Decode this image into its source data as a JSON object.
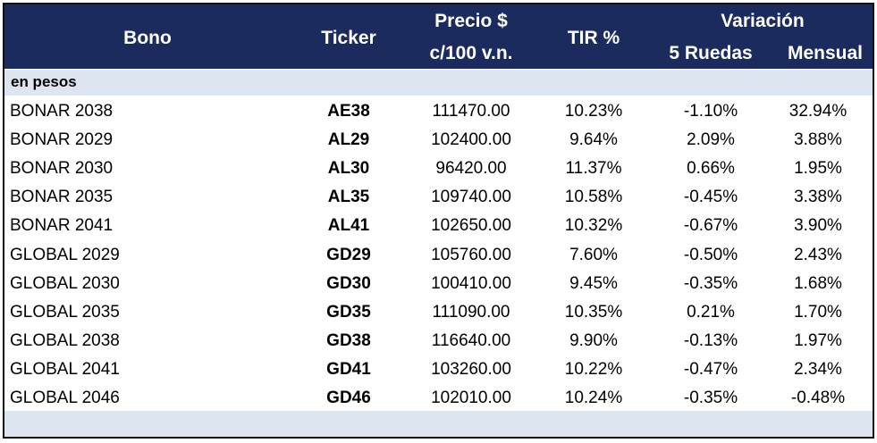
{
  "header": {
    "bono": "Bono",
    "ticker": "Ticker",
    "precio": [
      "Precio $",
      "c/100 v.n."
    ],
    "tir": "TIR %",
    "variacion": "Variación",
    "ruedas": "5 Ruedas",
    "mensual": "Mensual"
  },
  "section": "en pesos",
  "rows": [
    [
      "BONAR 2038",
      "AE38",
      "111470.00",
      "10.23%",
      "-1.10%",
      "32.94%"
    ],
    [
      "BONAR 2029",
      "AL29",
      "102400.00",
      "9.64%",
      "2.09%",
      "3.88%"
    ],
    [
      "BONAR 2030",
      "AL30",
      "96420.00",
      "11.37%",
      "0.66%",
      "1.95%"
    ],
    [
      "BONAR 2035",
      "AL35",
      "109740.00",
      "10.58%",
      "-0.45%",
      "3.38%"
    ],
    [
      "BONAR 2041",
      "AL41",
      "102650.00",
      "10.32%",
      "-0.67%",
      "3.90%"
    ],
    [
      "GLOBAL 2029",
      "GD29",
      "105760.00",
      "7.60%",
      "-0.50%",
      "2.43%"
    ],
    [
      "GLOBAL 2030",
      "GD30",
      "100410.00",
      "9.45%",
      "-0.35%",
      "1.68%"
    ],
    [
      "GLOBAL 2035",
      "GD35",
      "111090.00",
      "10.35%",
      "0.21%",
      "1.70%"
    ],
    [
      "GLOBAL 2038",
      "GD38",
      "116640.00",
      "9.90%",
      "-0.13%",
      "1.97%"
    ],
    [
      "GLOBAL 2041",
      "GD41",
      "103260.00",
      "10.22%",
      "-0.47%",
      "2.34%"
    ],
    [
      "GLOBAL 2046",
      "GD46",
      "102010.00",
      "10.24%",
      "-0.35%",
      "-0.48%"
    ]
  ]
}
